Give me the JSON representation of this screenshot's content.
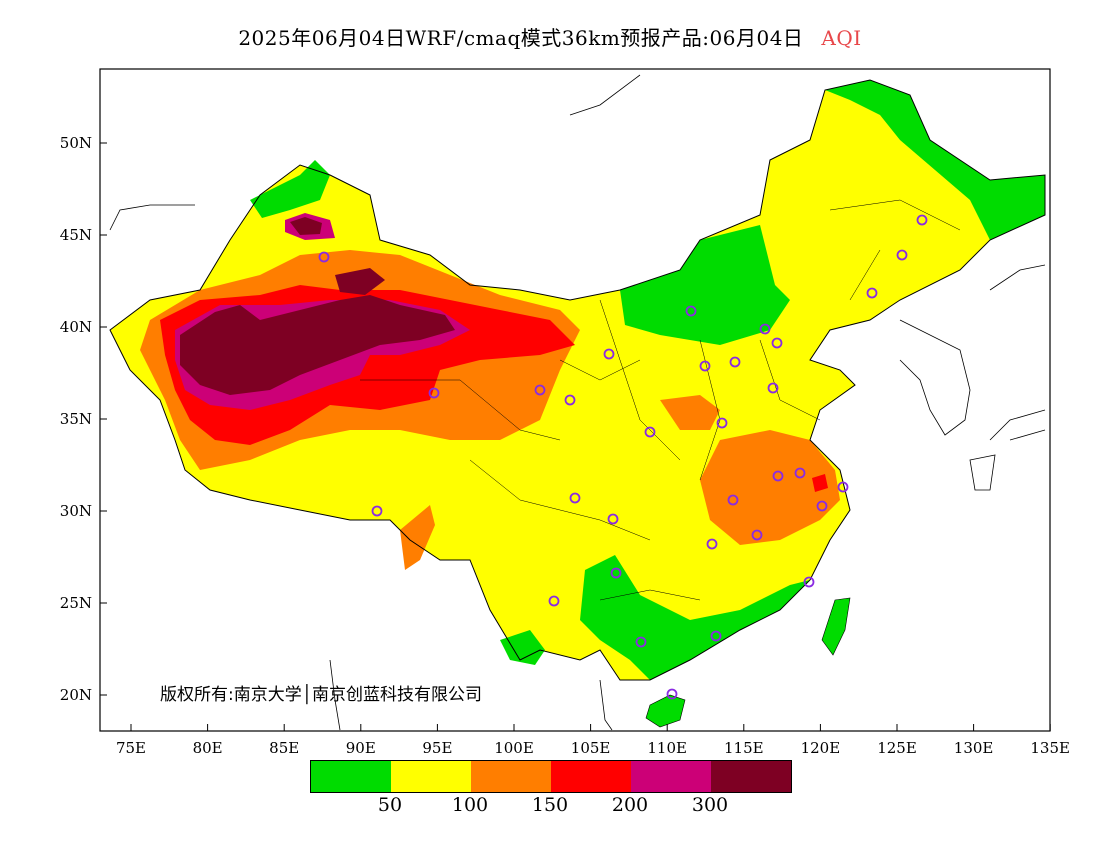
{
  "title": {
    "main": "2025年06月04日WRF/cmaq模式36km预报产品:06月04日",
    "variable": "AQI"
  },
  "axes": {
    "lat_ticks": [
      "50N",
      "45N",
      "40N",
      "35N",
      "30N",
      "25N",
      "20N"
    ],
    "lon_ticks": [
      "75E",
      "80E",
      "85E",
      "90E",
      "95E",
      "100E",
      "105E",
      "110E",
      "115E",
      "120E",
      "125E",
      "130E",
      "135E"
    ]
  },
  "copyright": "版权所有:南京大学│南京创蓝科技有限公司",
  "legend": {
    "colors": [
      "#00dc00",
      "#ffff00",
      "#ff7e00",
      "#ff0000",
      "#cc0077",
      "#7e0023"
    ],
    "labels": [
      "50",
      "100",
      "150",
      "200",
      "300"
    ]
  },
  "colors": {
    "land_outside": "#ffffff",
    "border": "#000000",
    "city_marker": "#8a2be2"
  }
}
